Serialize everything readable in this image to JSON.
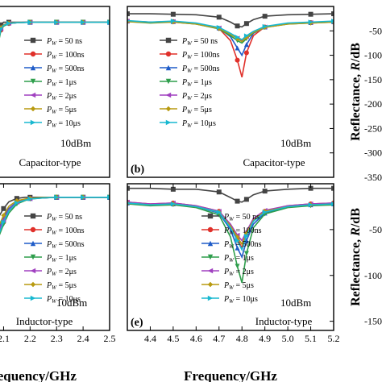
{
  "colors": {
    "axis": "#000000",
    "grid": "#ffffff"
  },
  "markers": [
    "square",
    "circle",
    "triangle-up",
    "triangle-down",
    "triangle-left",
    "diamond",
    "triangle-right"
  ],
  "chart_data": [
    {
      "id": "a",
      "type": "line",
      "panel_label": "",
      "condition_label": "10dBm",
      "type_label": "Capacitor-type",
      "xlabel": "",
      "ylabel": "",
      "xlim": [
        2.05,
        2.5
      ],
      "ylim": [
        -60,
        5
      ],
      "x_ticks": [],
      "y_ticks": [],
      "x": [
        2.05,
        2.06,
        2.07,
        2.08,
        2.09,
        2.1,
        2.12,
        2.15,
        2.2,
        2.25,
        2.3,
        2.35,
        2.4,
        2.45,
        2.5
      ],
      "series": [
        {
          "name": "P_W = 50 ns",
          "color": "#444444",
          "values": [
            -60,
            -30,
            -12,
            -5,
            -2,
            -1,
            -1,
            -1,
            -1,
            -1,
            -1,
            -1,
            -1,
            -1,
            -1
          ]
        },
        {
          "name": "P_W = 100ns",
          "color": "#e0302a",
          "values": [
            -60,
            -35,
            -18,
            -8,
            -4,
            -2,
            -1.5,
            -1.2,
            -1,
            -1,
            -1,
            -1,
            -1,
            -1,
            -1
          ]
        },
        {
          "name": "P_W = 500ns",
          "color": "#1f5cc8",
          "values": [
            -60,
            -32,
            -15,
            -7,
            -3,
            -2,
            -1.3,
            -1.1,
            -1,
            -1,
            -1,
            -1,
            -1,
            -1,
            -1
          ]
        },
        {
          "name": "P_W = 1μs",
          "color": "#2e9e4c",
          "values": [
            -60,
            -38,
            -20,
            -9,
            -4,
            -2.5,
            -1.5,
            -1.2,
            -1,
            -1,
            -1,
            -1,
            -1,
            -1,
            -1
          ]
        },
        {
          "name": "P_W = 2μs",
          "color": "#a040c0",
          "values": [
            -60,
            -34,
            -16,
            -7,
            -3.5,
            -2,
            -1.4,
            -1.1,
            -1,
            -1,
            -1,
            -1,
            -1,
            -1,
            -1
          ]
        },
        {
          "name": "P_W = 5μs",
          "color": "#b89a10",
          "values": [
            -60,
            -33,
            -14,
            -6,
            -3,
            -2,
            -1.3,
            -1.1,
            -1,
            -1,
            -1,
            -1,
            -1,
            -1,
            -1
          ]
        },
        {
          "name": "P_W = 10μs",
          "color": "#18b8d0",
          "values": [
            -60,
            -36,
            -17,
            -8,
            -3.5,
            -2.2,
            -1.4,
            -1.2,
            -1,
            -1,
            -1,
            -1,
            -1,
            -1,
            -1
          ]
        }
      ]
    },
    {
      "id": "b",
      "type": "line",
      "panel_label": "(b)",
      "condition_label": "10dBm",
      "type_label": "Capacitor-type",
      "xlabel": "",
      "ylabel": "Reflectance, R/dB",
      "ylabel_parts": {
        "pre": "Reflectance, ",
        "var": "R",
        "post": "/dB"
      },
      "xlim": [
        4.3,
        5.2
      ],
      "ylim": [
        -350,
        0
      ],
      "x_ticks": [],
      "y_ticks": [
        -50,
        -100,
        -150,
        -200,
        -250,
        -300,
        -350
      ],
      "y_tick_labels": [
        "-50",
        "-100",
        "-150",
        "-200",
        "-250",
        "-300",
        "-350"
      ],
      "x": [
        4.3,
        4.4,
        4.5,
        4.6,
        4.7,
        4.75,
        4.78,
        4.8,
        4.82,
        4.85,
        4.9,
        5.0,
        5.1,
        5.2
      ],
      "series": [
        {
          "name": "P_W = 50 ns",
          "color": "#444444",
          "values": [
            -15,
            -15,
            -16,
            -17,
            -22,
            -32,
            -40,
            -42,
            -35,
            -27,
            -20,
            -17,
            -16,
            -15
          ]
        },
        {
          "name": "P_W = 100ns",
          "color": "#e0302a",
          "values": [
            -30,
            -32,
            -31,
            -35,
            -45,
            -70,
            -110,
            -145,
            -95,
            -60,
            -42,
            -35,
            -33,
            -32
          ]
        },
        {
          "name": "P_W = 500ns",
          "color": "#1f5cc8",
          "values": [
            -30,
            -33,
            -31,
            -35,
            -44,
            -62,
            -85,
            -100,
            -78,
            -55,
            -42,
            -35,
            -33,
            -31
          ]
        },
        {
          "name": "P_W = 1μs",
          "color": "#2e9e4c",
          "values": [
            -31,
            -34,
            -32,
            -36,
            -46,
            -60,
            -70,
            -75,
            -66,
            -54,
            -43,
            -36,
            -34,
            -32
          ]
        },
        {
          "name": "P_W = 2μs",
          "color": "#a040c0",
          "values": [
            -30,
            -32,
            -31,
            -35,
            -44,
            -56,
            -65,
            -70,
            -62,
            -52,
            -42,
            -35,
            -33,
            -31
          ]
        },
        {
          "name": "P_W = 5μs",
          "color": "#b89a10",
          "values": [
            -31,
            -33,
            -32,
            -36,
            -45,
            -57,
            -66,
            -72,
            -63,
            -53,
            -43,
            -36,
            -34,
            -32
          ]
        },
        {
          "name": "P_W = 10μs",
          "color": "#18b8d0",
          "values": [
            -29,
            -32,
            -30,
            -34,
            -43,
            -55,
            -63,
            -68,
            -60,
            -51,
            -41,
            -34,
            -32,
            -30
          ]
        }
      ]
    },
    {
      "id": "d",
      "type": "line",
      "panel_label": "",
      "condition_label": "10dBm",
      "type_label": "Inductor-type",
      "xlabel": "Frequency/GHz",
      "ylabel": "",
      "xlim": [
        2.05,
        2.5
      ],
      "ylim": [
        -60,
        5
      ],
      "x_ticks": [
        2.1,
        2.2,
        2.3,
        2.4,
        2.5
      ],
      "x_tick_labels": [
        "2.1",
        "2.2",
        "2.3",
        "2.4",
        "2.5"
      ],
      "y_ticks": [],
      "x": [
        2.05,
        2.07,
        2.1,
        2.12,
        2.15,
        2.18,
        2.2,
        2.25,
        2.3,
        2.35,
        2.4,
        2.45,
        2.5
      ],
      "series": [
        {
          "name": "P_W = 50 ns",
          "color": "#444444",
          "values": [
            -20,
            -12,
            -6,
            -3,
            -1.5,
            -1,
            -1,
            -1,
            -1,
            -1,
            -1,
            -1,
            -1
          ]
        },
        {
          "name": "P_W = 100ns",
          "color": "#e0302a",
          "values": [
            -30,
            -20,
            -12,
            -7,
            -3,
            -2,
            -1.5,
            -1.2,
            -1,
            -1,
            -1,
            -1,
            -1
          ]
        },
        {
          "name": "P_W = 500ns",
          "color": "#1f5cc8",
          "values": [
            -28,
            -18,
            -10,
            -6,
            -3,
            -2,
            -1.5,
            -1.2,
            -1,
            -1,
            -1,
            -1,
            -1
          ]
        },
        {
          "name": "P_W = 1μs",
          "color": "#2e9e4c",
          "values": [
            -32,
            -22,
            -13,
            -8,
            -4,
            -2.5,
            -1.8,
            -1.3,
            -1,
            -1,
            -1,
            -1,
            -1
          ]
        },
        {
          "name": "P_W = 2μs",
          "color": "#a040c0",
          "values": [
            -29,
            -19,
            -11,
            -6.5,
            -3.2,
            -2.2,
            -1.6,
            -1.2,
            -1,
            -1,
            -1,
            -1,
            -1
          ]
        },
        {
          "name": "P_W = 5μs",
          "color": "#b89a10",
          "values": [
            -27,
            -17,
            -9,
            -5,
            -2.5,
            -1.8,
            -1.4,
            -1.1,
            -1,
            -1,
            -1,
            -1,
            -1
          ]
        },
        {
          "name": "P_W = 10μs",
          "color": "#18b8d0",
          "values": [
            -31,
            -21,
            -12,
            -7,
            -3.5,
            -2.3,
            -1.7,
            -1.3,
            -1,
            -1,
            -1,
            -1,
            -1
          ]
        }
      ]
    },
    {
      "id": "e",
      "type": "line",
      "panel_label": "(e)",
      "condition_label": "10dBm",
      "type_label": "Inductor-type",
      "xlabel": "Frequency/GHz",
      "ylabel": "Reflectance, R/dB",
      "ylabel_parts": {
        "pre": "Reflectance, ",
        "var": "R",
        "post": "/dB"
      },
      "xlim": [
        4.3,
        5.2
      ],
      "ylim": [
        -160,
        0
      ],
      "x_ticks": [
        4.4,
        4.5,
        4.6,
        4.7,
        4.8,
        4.9,
        5.0,
        5.1,
        5.2
      ],
      "x_tick_labels": [
        "4.4",
        "4.5",
        "4.6",
        "4.7",
        "4.8",
        "4.9",
        "5.0",
        "5.1",
        "5.2"
      ],
      "y_ticks": [
        -50,
        -100,
        -150
      ],
      "y_tick_labels": [
        "-50",
        "-100",
        "-150"
      ],
      "x": [
        4.3,
        4.4,
        4.5,
        4.6,
        4.7,
        4.75,
        4.78,
        4.8,
        4.82,
        4.85,
        4.9,
        5.0,
        5.1,
        5.2
      ],
      "series": [
        {
          "name": "P_W = 50 ns",
          "color": "#444444",
          "values": [
            -5,
            -5,
            -6,
            -6,
            -9,
            -15,
            -19,
            -20,
            -17,
            -12,
            -8,
            -6,
            -5,
            -5
          ]
        },
        {
          "name": "P_W = 100ns",
          "color": "#e0302a",
          "values": [
            -20,
            -22,
            -21,
            -24,
            -30,
            -45,
            -60,
            -70,
            -55,
            -40,
            -30,
            -24,
            -22,
            -21
          ]
        },
        {
          "name": "P_W = 500ns",
          "color": "#1f5cc8",
          "values": [
            -21,
            -23,
            -22,
            -25,
            -32,
            -50,
            -70,
            -80,
            -62,
            -44,
            -32,
            -25,
            -23,
            -22
          ]
        },
        {
          "name": "P_W = 1μs",
          "color": "#2e9e4c",
          "values": [
            -22,
            -24,
            -23,
            -26,
            -34,
            -58,
            -90,
            -108,
            -76,
            -48,
            -33,
            -26,
            -24,
            -23
          ]
        },
        {
          "name": "P_W = 2μs",
          "color": "#a040c0",
          "values": [
            -20,
            -22,
            -21,
            -24,
            -30,
            -44,
            -56,
            -62,
            -52,
            -38,
            -29,
            -24,
            -22,
            -21
          ]
        },
        {
          "name": "P_W = 5μs",
          "color": "#b89a10",
          "values": [
            -21,
            -23,
            -22,
            -25,
            -31,
            -46,
            -58,
            -66,
            -54,
            -40,
            -30,
            -25,
            -23,
            -22
          ]
        },
        {
          "name": "P_W = 10μs",
          "color": "#18b8d0",
          "values": [
            -21,
            -23,
            -22,
            -25,
            -31,
            -48,
            -62,
            -72,
            -57,
            -41,
            -31,
            -25,
            -23,
            -22
          ]
        }
      ]
    }
  ]
}
